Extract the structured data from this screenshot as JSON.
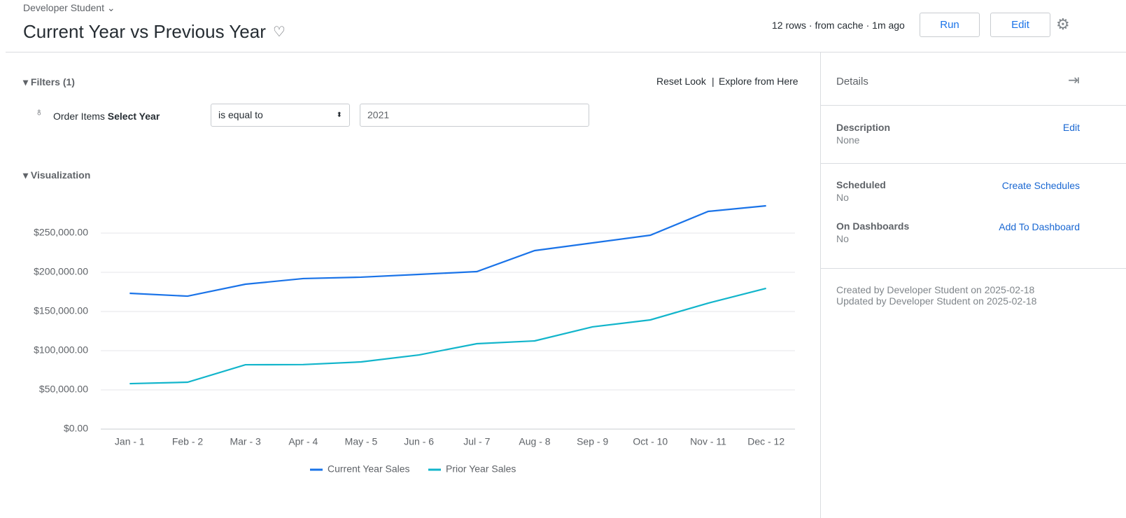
{
  "header": {
    "breadcrumb": "Developer Student",
    "title": "Current Year vs Previous Year",
    "status": "12 rows · from cache · 1m ago",
    "run_button": "Run",
    "edit_button": "Edit"
  },
  "filters": {
    "heading": "Filters (1)",
    "reset_link": "Reset Look",
    "explore_link": "Explore from Here",
    "field_view": "Order Items",
    "field_name": "Select Year",
    "operator": "is equal to",
    "value": "2021"
  },
  "visualization": {
    "heading": "Visualization"
  },
  "details": {
    "heading": "Details",
    "description_label": "Description",
    "description_value": "None",
    "description_action": "Edit",
    "scheduled_label": "Scheduled",
    "scheduled_value": "No",
    "scheduled_action": "Create Schedules",
    "dashboards_label": "On Dashboards",
    "dashboards_value": "No",
    "dashboards_action": "Add To Dashboard",
    "created": "Created by Developer Student on 2025-02-18",
    "updated": "Updated by Developer Student on 2025-02-18"
  },
  "chart_data": {
    "type": "line",
    "categories": [
      "Jan - 1",
      "Feb - 2",
      "Mar - 3",
      "Apr - 4",
      "May - 5",
      "Jun - 6",
      "Jul - 7",
      "Aug - 8",
      "Sep - 9",
      "Oct - 10",
      "Nov - 11",
      "Dec - 12"
    ],
    "series": [
      {
        "name": "Current Year Sales",
        "color": "#1a73e8",
        "values": [
          173200,
          169600,
          184800,
          192000,
          193800,
          197300,
          200900,
          227700,
          237500,
          247300,
          277700,
          284800
        ]
      },
      {
        "name": "Prior Year Sales",
        "color": "#12b5cb",
        "values": [
          58000,
          59800,
          82100,
          82300,
          85700,
          94600,
          108900,
          112500,
          130400,
          139300,
          160700,
          179500
        ]
      }
    ],
    "ylim": [
      0,
      300000
    ],
    "yticks": [
      {
        "value": 0,
        "label": "$0.00"
      },
      {
        "value": 50000,
        "label": "$50,000.00"
      },
      {
        "value": 100000,
        "label": "$100,000.00"
      },
      {
        "value": 150000,
        "label": "$150,000.00"
      },
      {
        "value": 200000,
        "label": "$200,000.00"
      },
      {
        "value": 250000,
        "label": "$250,000.00"
      }
    ],
    "grid": true,
    "legend": "bottom"
  }
}
